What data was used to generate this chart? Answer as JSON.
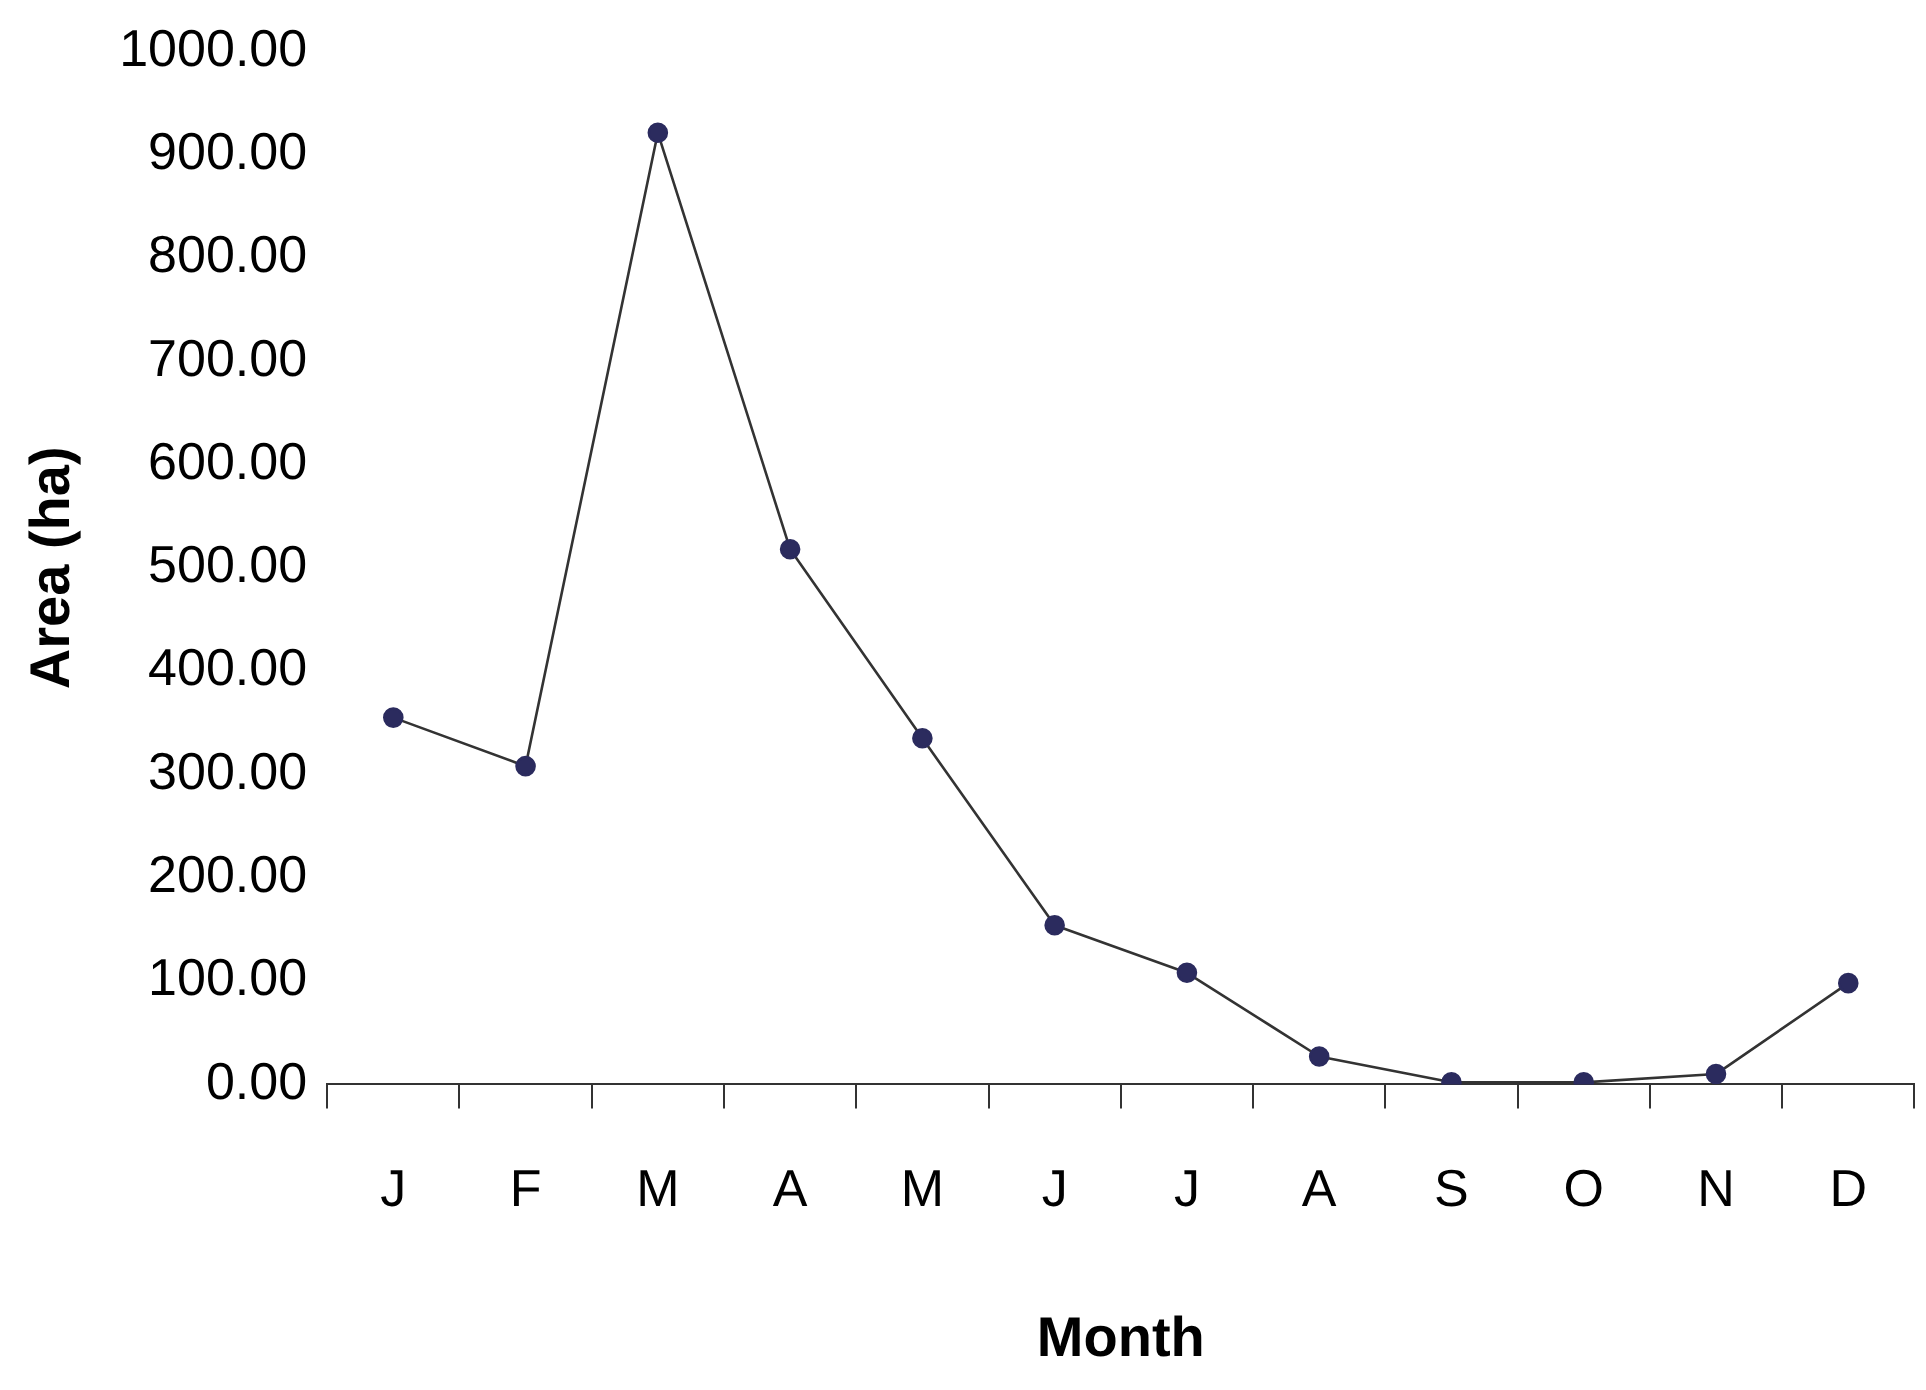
{
  "chart_data": {
    "type": "line",
    "xlabel": "Month",
    "ylabel": "Area (ha)",
    "categories": [
      "J",
      "F",
      "M",
      "A",
      "M",
      "J",
      "J",
      "A",
      "S",
      "O",
      "N",
      "D"
    ],
    "series": [
      {
        "color": "#2b2b5e",
        "values": [
          355,
          308,
          921,
          518,
          335,
          154,
          108,
          27,
          2,
          2,
          10,
          98
        ]
      }
    ],
    "ylim": [
      0,
      1000
    ],
    "yticks": [
      {
        "value": 0,
        "label": "0.00"
      },
      {
        "value": 100,
        "label": "100.00"
      },
      {
        "value": 200,
        "label": "200.00"
      },
      {
        "value": 300,
        "label": "300.00"
      },
      {
        "value": 400,
        "label": "400.00"
      },
      {
        "value": 500,
        "label": "500.00"
      },
      {
        "value": 600,
        "label": "600.00"
      },
      {
        "value": 700,
        "label": "700.00"
      },
      {
        "value": 800,
        "label": "800.00"
      },
      {
        "value": 900,
        "label": "900.00"
      },
      {
        "value": 1000,
        "label": "1000.00"
      }
    ],
    "grid": false,
    "legend": false,
    "marker": "circle",
    "line_style": "solid"
  }
}
